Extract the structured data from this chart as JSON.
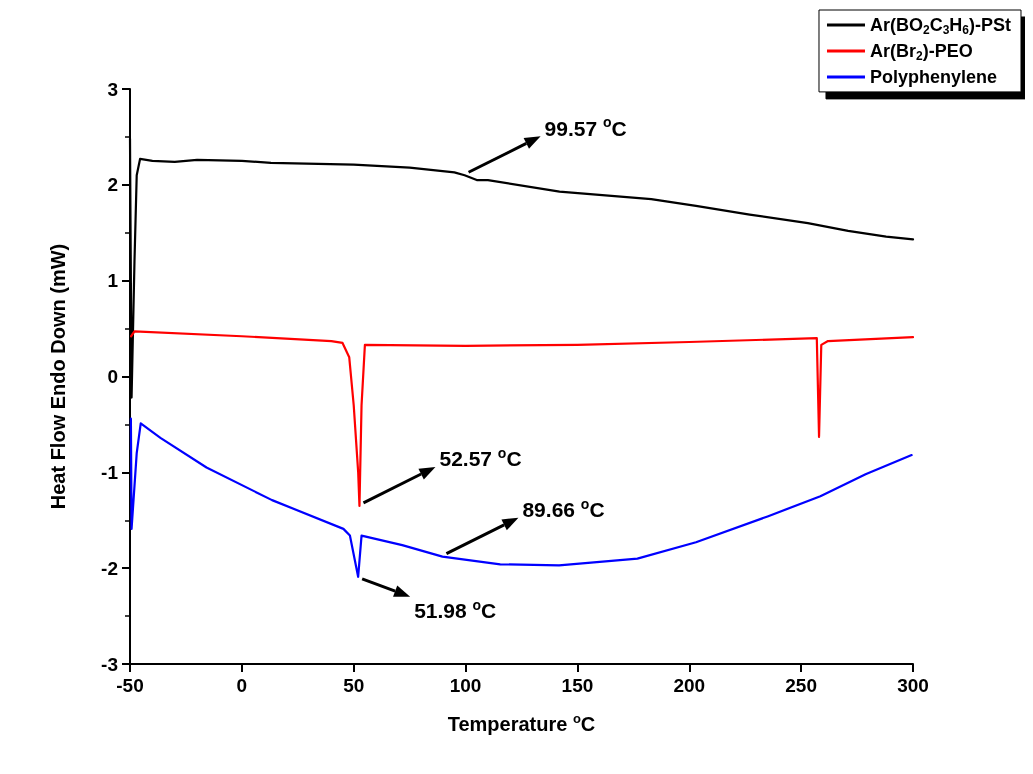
{
  "chart_data": {
    "type": "line",
    "xlabel": "Temperature $^{o}$C",
    "ylabel": "Heat Flow Endo Down (mW)",
    "xlim": [
      -50,
      300
    ],
    "xticks": [
      -50,
      0,
      50,
      100,
      150,
      200,
      250,
      300
    ],
    "ylim": [
      -3,
      3
    ],
    "yticks": [
      -3,
      -2,
      -1,
      0,
      1,
      2,
      3
    ],
    "legend": "top right",
    "marker": "none",
    "line_style": "solid",
    "series": [
      {
        "name": "Ar(BO$_{2}$C$_{3}$H$_{6}$)-PSt",
        "color": "#000000",
        "x": [
          -50,
          -49.3,
          -48,
          -47,
          -45.5,
          -40,
          -30,
          -20,
          0,
          13,
          50,
          75,
          95,
          99.57,
          105,
          110,
          142,
          183,
          203,
          227,
          253,
          271,
          288,
          300
        ],
        "values": [
          2.48,
          -0.22,
          1.2,
          2.1,
          2.27,
          2.25,
          2.24,
          2.26,
          2.25,
          2.23,
          2.21,
          2.18,
          2.13,
          2.1,
          2.05,
          2.05,
          1.93,
          1.85,
          1.78,
          1.69,
          1.6,
          1.52,
          1.46,
          1.43
        ]
      },
      {
        "name": "Ar(Br$_{2}$)-PEO",
        "color": "#ff0000",
        "x": [
          -49.5,
          -48,
          0,
          40,
          45,
          48,
          50,
          52,
          52.57,
          53.5,
          55,
          100,
          150,
          200,
          257,
          258,
          259,
          262,
          300
        ],
        "values": [
          0.42,
          0.47,
          0.42,
          0.37,
          0.35,
          0.2,
          -0.3,
          -1.0,
          -1.35,
          -0.3,
          0.33,
          0.32,
          0.33,
          0.36,
          0.4,
          -0.63,
          0.33,
          0.37,
          0.41
        ]
      },
      {
        "name": "Polyphenylene",
        "color": "#0000ff",
        "x": [
          -49.6,
          -49.3,
          -47,
          -45.2,
          -36.4,
          -15.8,
          13.5,
          45.4,
          48.3,
          51.98,
          53.5,
          71.7,
          89.66,
          115.5,
          141.8,
          176.8,
          203,
          235,
          258.6,
          278.8,
          299.4
        ],
        "values": [
          -0.44,
          -1.59,
          -0.8,
          -0.49,
          -0.64,
          -0.95,
          -1.29,
          -1.59,
          -1.66,
          -2.09,
          -1.66,
          -1.76,
          -1.88,
          -1.96,
          -1.97,
          -1.9,
          -1.73,
          -1.46,
          -1.25,
          -1.02,
          -0.82
        ]
      }
    ],
    "annotations": [
      {
        "text": "99.57 $^{o}$C",
        "x": 99.57,
        "y": 2.1
      },
      {
        "text": "52.57 $^{o}$C",
        "x": 52.57,
        "y": -1.35
      },
      {
        "text": "89.66 $^{o}$C",
        "x": 89.66,
        "y": -1.88
      },
      {
        "text": "51.98 $^{o}$C",
        "x": 51.98,
        "y": -2.09
      }
    ]
  }
}
